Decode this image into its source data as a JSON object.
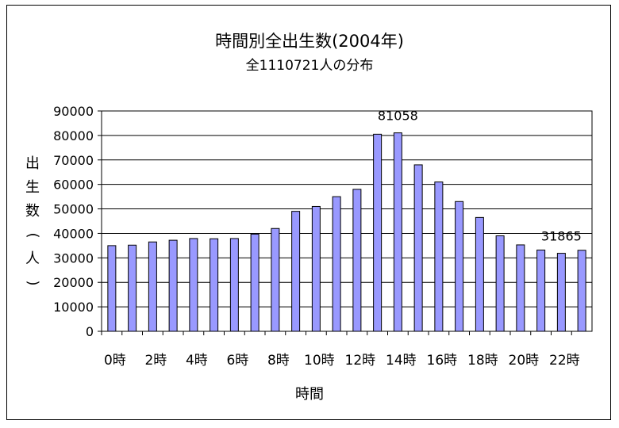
{
  "chart_data": {
    "type": "bar",
    "title": "時間別全出生数(2004年)",
    "subtitle": "全1110721人の分布",
    "ylabel_chars": [
      "出",
      "生",
      "数",
      "(",
      "人",
      ")"
    ],
    "xlabel": "時間",
    "ylim": [
      0,
      90000
    ],
    "yticks": [
      0,
      10000,
      20000,
      30000,
      40000,
      50000,
      60000,
      70000,
      80000,
      90000
    ],
    "categories": [
      "0時",
      "1時",
      "2時",
      "3時",
      "4時",
      "5時",
      "6時",
      "7時",
      "8時",
      "9時",
      "10時",
      "11時",
      "12時",
      "13時",
      "14時",
      "15時",
      "16時",
      "17時",
      "18時",
      "19時",
      "20時",
      "21時",
      "22時",
      "23時"
    ],
    "visible_tick_labels": [
      "0時",
      "2時",
      "4時",
      "6時",
      "8時",
      "10時",
      "12時",
      "14時",
      "16時",
      "18時",
      "20時",
      "22時"
    ],
    "values": [
      35000,
      35200,
      36500,
      37200,
      37900,
      37800,
      37900,
      39700,
      42000,
      49000,
      51000,
      55000,
      58000,
      80500,
      81058,
      68000,
      61000,
      53000,
      46500,
      39000,
      35300,
      33200,
      31865,
      33100
    ],
    "data_labels": [
      {
        "category": "14時",
        "text": "81058"
      },
      {
        "category": "22時",
        "text": "31865"
      }
    ],
    "grid": true,
    "bar_color": "#9999ff",
    "legend": "none"
  }
}
